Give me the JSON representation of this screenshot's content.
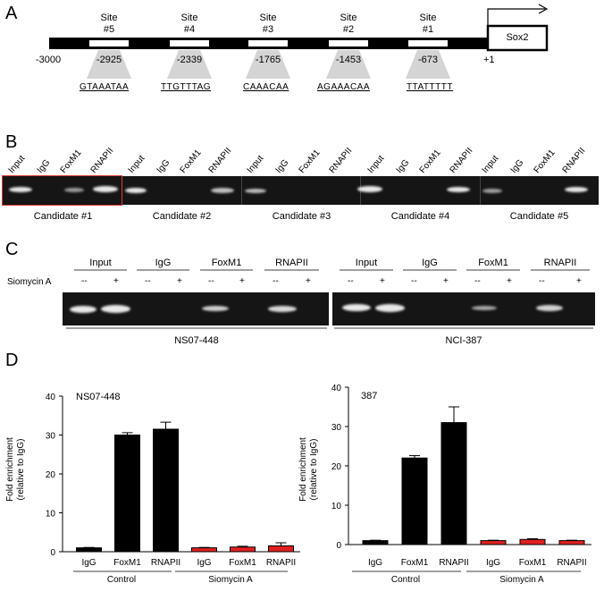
{
  "panelA": {
    "label": "A",
    "sites": [
      {
        "title": "Site",
        "num": "#5",
        "pos": "-2925",
        "seq": "GTAAATAA"
      },
      {
        "title": "Site",
        "num": "#4",
        "pos": "-2339",
        "seq": "TTGTTTAG"
      },
      {
        "title": "Site",
        "num": "#3",
        "pos": "-1765",
        "seq": "CAAACAA"
      },
      {
        "title": "Site",
        "num": "#2",
        "pos": "-1453",
        "seq": "AGAAACAA"
      },
      {
        "title": "Site",
        "num": "#1",
        "pos": "-673",
        "seq": "TTATTTTT"
      }
    ],
    "start_label": "-3000",
    "tss_label": "+1",
    "gene": "Sox2"
  },
  "panelB": {
    "label": "B",
    "lane_labels": [
      "Input",
      "IgG",
      "FoxM1",
      "RNAPII"
    ],
    "candidates": [
      "Candidate #1",
      "Candidate #2",
      "Candidate #3",
      "Candidate #4",
      "Candidate #5"
    ]
  },
  "panelC": {
    "label": "C",
    "treatment": "Siomycin A",
    "groups": [
      "Input",
      "IgG",
      "FoxM1",
      "RNAPII"
    ],
    "minus": "--",
    "plus": "+",
    "cell_lines": [
      "NS07-448",
      "NCI-387"
    ]
  },
  "panelD": {
    "label": "D",
    "ylabel_line1": "Fold enrichment",
    "ylabel_line2": "(relative to IgG)",
    "group_labels": [
      "Control",
      "Siomycin A"
    ]
  },
  "chart_data": [
    {
      "type": "bar",
      "title": "NS07-448",
      "categories": [
        "IgG",
        "FoxM1",
        "RNAPII",
        "IgG",
        "FoxM1",
        "RNAPII"
      ],
      "groups": [
        "Control",
        "Control",
        "Control",
        "Siomycin A",
        "Siomycin A",
        "Siomycin A"
      ],
      "values": [
        1.0,
        30.0,
        31.5,
        1.0,
        1.2,
        1.5
      ],
      "errors": [
        0.1,
        0.6,
        1.8,
        0.1,
        0.2,
        0.8
      ],
      "colors": [
        "#000000",
        "#000000",
        "#000000",
        "#e02020",
        "#e02020",
        "#e02020"
      ],
      "ylim": [
        0,
        40
      ],
      "yticks": [
        0,
        10,
        20,
        30,
        40
      ],
      "ylabel": "Fold enrichment (relative to IgG)"
    },
    {
      "type": "bar",
      "title": "387",
      "categories": [
        "IgG",
        "FoxM1",
        "RNAPII",
        "IgG",
        "FoxM1",
        "RNAPII"
      ],
      "groups": [
        "Control",
        "Control",
        "Control",
        "Siomycin A",
        "Siomycin A",
        "Siomycin A"
      ],
      "values": [
        1.0,
        22.0,
        31.0,
        1.0,
        1.3,
        1.0
      ],
      "errors": [
        0.1,
        0.6,
        4.0,
        0.1,
        0.2,
        0.1
      ],
      "colors": [
        "#000000",
        "#000000",
        "#000000",
        "#e02020",
        "#e02020",
        "#e02020"
      ],
      "ylim": [
        0,
        40
      ],
      "yticks": [
        0,
        10,
        20,
        30,
        40
      ],
      "ylabel": "Fold enrichment (relative to IgG)"
    }
  ]
}
